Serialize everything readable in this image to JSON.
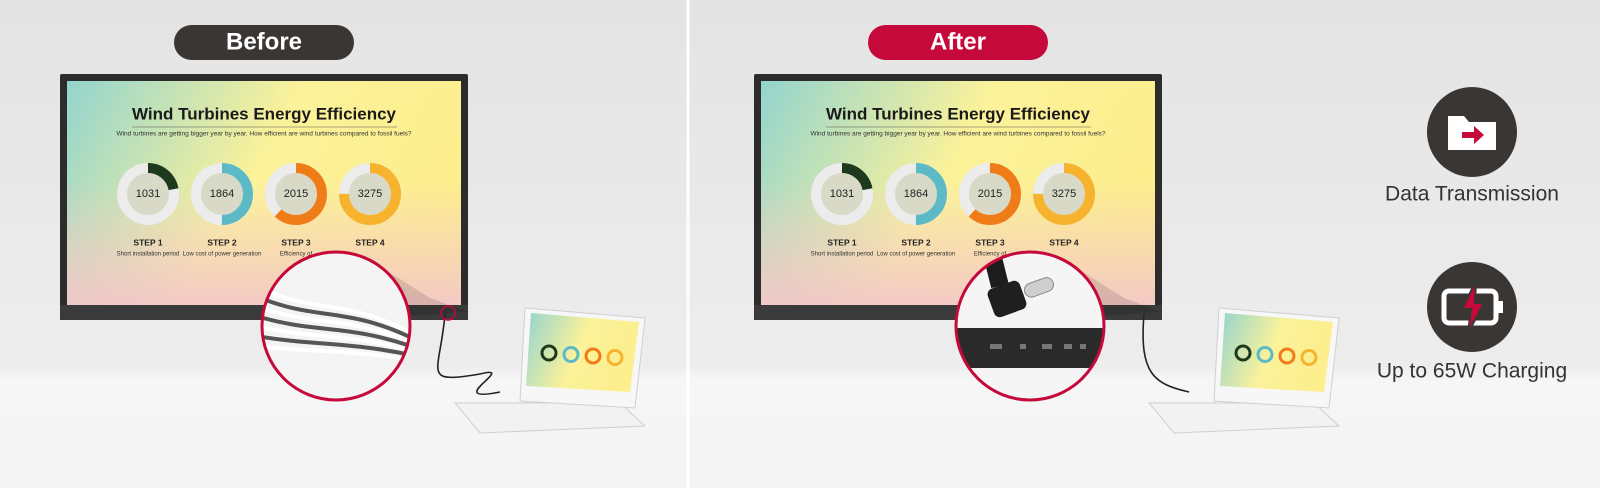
{
  "panels": [
    {
      "label": "Before"
    },
    {
      "label": "After"
    }
  ],
  "screen": {
    "title": "Wind Turbines Energy Efficiency",
    "subtitle": "Wind turbines are getting bigger year by year.   How efficient are wind turbines compared to fossil fuels?",
    "donuts": [
      1031,
      1864,
      2015,
      3275
    ],
    "steps": [
      {
        "name": "STEP 1",
        "description": "Short installation period"
      },
      {
        "name": "STEP 2",
        "description": "Low cost of power generation"
      },
      {
        "name": "STEP 3",
        "description": "Efficiency of"
      },
      {
        "name": "STEP 4"
      }
    ]
  },
  "features": [
    {
      "label": "Data Transmission"
    },
    {
      "label": "Up to 65W Charging"
    }
  ]
}
